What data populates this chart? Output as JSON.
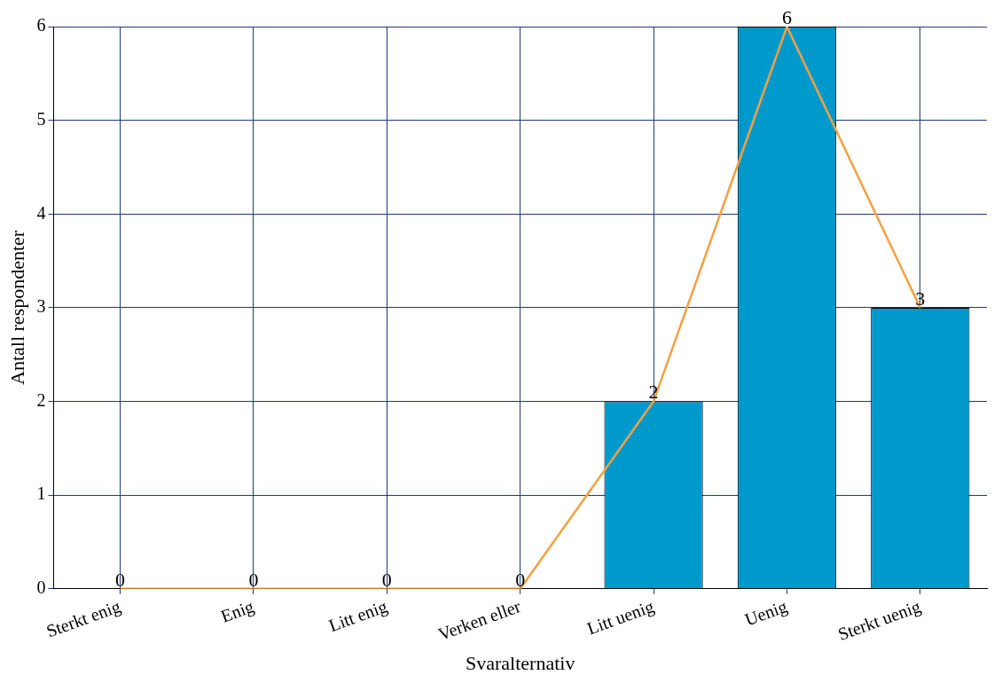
{
  "chart_data": {
    "type": "bar",
    "xlabel": "Svaralternativ",
    "ylabel": "Antall respondenter",
    "categories": [
      "Sterkt enig",
      "Enig",
      "Litt enig",
      "Verken eller",
      "Litt uenig",
      "Uenig",
      "Sterkt uenig"
    ],
    "series": [
      {
        "color": "#0099cc",
        "values": [
          0,
          0,
          0,
          0,
          2,
          6,
          3
        ],
        "value_labels": [
          "0",
          "0",
          "0",
          "0",
          "2",
          "6",
          "3"
        ]
      },
      {
        "type": "line",
        "color": "#f5a040",
        "values": [
          0,
          0,
          0,
          0,
          2,
          6,
          3
        ]
      }
    ],
    "ylim": [
      0,
      6
    ],
    "yticks": [
      0,
      1,
      2,
      3,
      4,
      5,
      6
    ],
    "grid": true,
    "legend": false,
    "marker": "none"
  }
}
